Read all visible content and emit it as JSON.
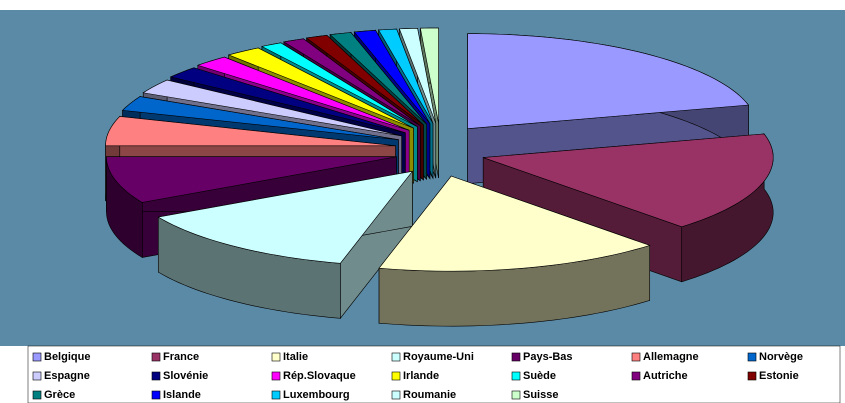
{
  "chart_data": {
    "type": "pie3d",
    "categories": [
      "Belgique",
      "France",
      "Italie",
      "Royaume-Uni",
      "Pays-Bas",
      "Allemagne",
      "Norvège",
      "Espagne",
      "Slovénie",
      "Rép.Slovaque",
      "Irlande",
      "Suède",
      "Autriche",
      "Estonie",
      "Grèce",
      "Islande",
      "Luxembourg",
      "Roumanie",
      "Suisse"
    ],
    "values": [
      21,
      17,
      16,
      13,
      8,
      5,
      2.5,
      2.5,
      2,
      2,
      2,
      1.2,
      1.2,
      1.2,
      1.2,
      1.2,
      1,
      1,
      1
    ],
    "colors": [
      "#9999ff",
      "#993366",
      "#ffffcc",
      "#ccffff",
      "#660066",
      "#ff8080",
      "#0066cc",
      "#ccccff",
      "#000080",
      "#ff00ff",
      "#ffff00",
      "#00ffff",
      "#800080",
      "#800000",
      "#008080",
      "#0000ff",
      "#00ccff",
      "#ccffff",
      "#ccffcc"
    ],
    "legend": "bottom"
  }
}
